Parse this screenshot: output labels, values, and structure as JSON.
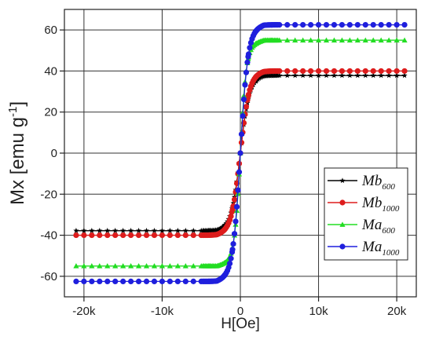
{
  "chart_data": {
    "type": "line",
    "title": "",
    "xlabel": "H[Oe]",
    "ylabel": {
      "main": "Mx [emu g",
      "sup": "-1",
      "close": "]"
    },
    "xlim": [
      -22500,
      22500
    ],
    "ylim": [
      -70,
      70
    ],
    "xticks": [
      {
        "value": -20000,
        "label": "-20k"
      },
      {
        "value": -10000,
        "label": "-10k"
      },
      {
        "value": 0,
        "label": "0"
      },
      {
        "value": 10000,
        "label": "10k"
      },
      {
        "value": 20000,
        "label": "20k"
      }
    ],
    "yticks": [
      {
        "value": -60,
        "label": "-60"
      },
      {
        "value": -40,
        "label": "-40"
      },
      {
        "value": -20,
        "label": "-20"
      },
      {
        "value": 0,
        "label": "0"
      },
      {
        "value": 20,
        "label": "20"
      },
      {
        "value": 40,
        "label": "40"
      },
      {
        "value": 60,
        "label": "60"
      }
    ],
    "grid": true,
    "legend_position": "lower-right",
    "series": [
      {
        "name": "Mb",
        "sub": "600",
        "color": "#000000",
        "marker": "star",
        "ms": 37.8,
        "hk": 1100
      },
      {
        "name": "Mb",
        "sub": "1000",
        "color": "#dd1c1c",
        "marker": "circle",
        "ms": 40.0,
        "hk": 1100
      },
      {
        "name": "Ma",
        "sub": "600",
        "color": "#22dd22",
        "marker": "triangle",
        "ms": 55.0,
        "hk": 750
      },
      {
        "name": "Ma",
        "sub": "1000",
        "color": "#1f1fdd",
        "marker": "circle",
        "ms": 62.5,
        "hk": 950
      }
    ]
  }
}
